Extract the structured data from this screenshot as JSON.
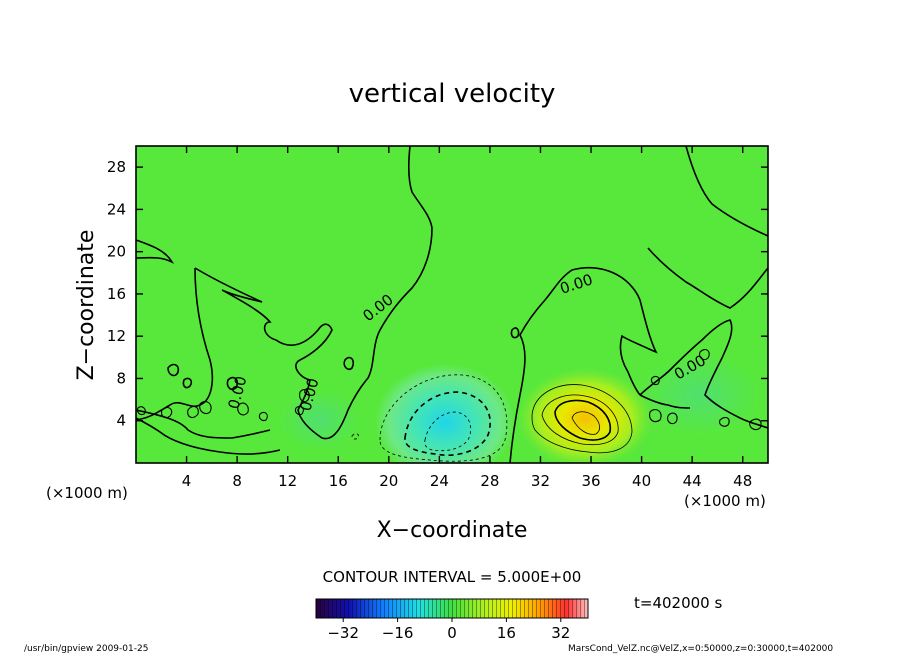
{
  "chart_data": {
    "type": "contour",
    "title": "vertical velocity",
    "xlabel": "X−coordinate",
    "ylabel": "Z−coordinate",
    "x_unit": "(×1000 m)",
    "y_unit": "(×1000 m)",
    "xlim": [
      0,
      50
    ],
    "ylim": [
      0,
      30
    ],
    "x_ticks": [
      4,
      8,
      12,
      16,
      20,
      24,
      28,
      32,
      36,
      40,
      44,
      48
    ],
    "y_ticks": [
      4,
      8,
      12,
      16,
      20,
      24,
      28
    ],
    "contour_interval_text": "CONTOUR INTERVAL = 5.000E+00",
    "contour_labels": [
      "0.00"
    ],
    "time_label": "t=402000 s",
    "colorbar": {
      "range": [
        -40,
        40
      ],
      "ticks": [
        -32,
        -16,
        0,
        16,
        32
      ],
      "tick_labels": [
        "−32",
        "−16",
        "0",
        "16",
        "32"
      ]
    },
    "features": [
      {
        "kind": "min",
        "x": 24.5,
        "z": 4,
        "value": -15
      },
      {
        "kind": "max",
        "x": 35.8,
        "z": 3.8,
        "value": 18
      }
    ]
  },
  "footer": {
    "left": "/usr/bin/gpview   2009-01-25",
    "right": "MarsCond_VelZ.nc@VelZ,x=0:50000,z=0:30000,t=402000"
  }
}
